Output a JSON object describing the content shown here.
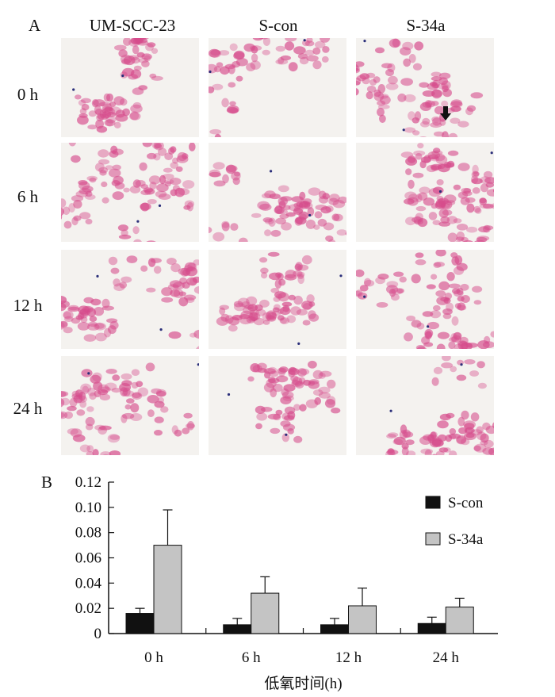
{
  "figure": {
    "panel_a_label": "A",
    "panel_b_label": "B",
    "columns": [
      "UM-SCC-23",
      "S-con",
      "S-34a"
    ],
    "rows": [
      "0 h",
      "6 h",
      "12 h",
      "24 h"
    ],
    "arrow_icon": "down-arrow-icon",
    "stain_color": "#d64c8c",
    "background_color": "#f4f2ef"
  },
  "chart_data": {
    "type": "bar",
    "categories": [
      "0 h",
      "6 h",
      "12 h",
      "24 h"
    ],
    "series": [
      {
        "name": "S-con",
        "values": [
          0.016,
          0.007,
          0.007,
          0.008
        ],
        "errors": [
          0.004,
          0.005,
          0.005,
          0.005
        ],
        "color": "#111111"
      },
      {
        "name": "S-34a",
        "values": [
          0.07,
          0.032,
          0.022,
          0.021
        ],
        "errors": [
          0.028,
          0.013,
          0.014,
          0.007
        ],
        "color": "#c4c4c4"
      }
    ],
    "yticks": [
      "0",
      "0.02",
      "0.04",
      "0.06",
      "0.08",
      "0.10",
      "0.12"
    ],
    "ylim": [
      0,
      0.12
    ],
    "xlabel": "低氧时间(h)",
    "ylabel": "",
    "legend_position": "top-right",
    "grid": false
  }
}
